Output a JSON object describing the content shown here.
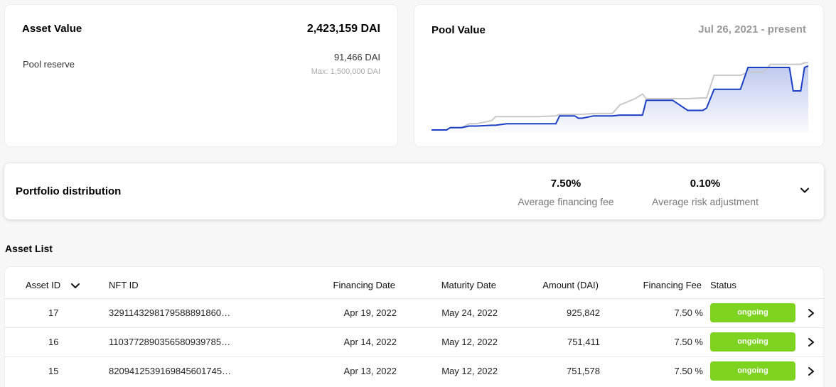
{
  "asset_value": {
    "title": "Asset Value",
    "total": "2,423,159 DAI",
    "reserve_label": "Pool reserve",
    "reserve_value": "91,466 DAI",
    "reserve_max": "Max: 1,500,000 DAI"
  },
  "pool_value": {
    "title": "Pool Value",
    "date_range": "Jul 26, 2021 - present"
  },
  "chart_data": {
    "type": "line",
    "title": "Pool Value",
    "xlabel": "",
    "ylabel": "",
    "grid": false,
    "legend": "none",
    "ylim": [
      0,
      100
    ],
    "x": [
      0,
      4,
      5,
      8,
      10,
      12,
      16,
      17,
      20,
      24,
      28,
      33,
      34,
      38,
      39,
      40,
      43,
      48,
      50,
      54,
      56,
      57,
      60,
      61,
      64,
      68,
      72,
      73,
      75,
      78,
      79,
      82,
      84,
      85,
      88,
      90,
      92,
      95,
      96,
      98,
      99,
      100
    ],
    "series": [
      {
        "color": "#1a3ec4",
        "values": [
          0,
          0,
          3,
          3,
          5,
          5,
          6,
          6,
          8,
          8,
          8,
          8,
          18,
          18,
          15,
          15,
          18,
          18,
          19,
          19,
          19,
          38,
          38,
          38,
          38,
          25,
          25,
          28,
          52,
          52,
          52,
          52,
          80,
          80,
          80,
          80,
          80,
          80,
          50,
          50,
          80,
          82
        ]
      },
      {
        "color": "#c8c8c8",
        "values": [
          0,
          0,
          3,
          3,
          8,
          8,
          12,
          17,
          17,
          17,
          17,
          18,
          20,
          20,
          20,
          20,
          21,
          21,
          32,
          40,
          46,
          40,
          40,
          40,
          40,
          40,
          41,
          41,
          70,
          70,
          70,
          70,
          74,
          74,
          74,
          84,
          84,
          84,
          84,
          84,
          86,
          86
        ]
      }
    ]
  },
  "portfolio": {
    "title": "Portfolio distribution",
    "fee_value": "7.50%",
    "fee_label": "Average financing fee",
    "risk_value": "0.10%",
    "risk_label": "Average risk adjustment"
  },
  "asset_list": {
    "title": "Asset List",
    "columns": {
      "asset_id": "Asset ID",
      "nft_id": "NFT ID",
      "financing_date": "Financing Date",
      "maturity_date": "Maturity Date",
      "amount": "Amount (DAI)",
      "financing_fee": "Financing Fee",
      "status": "Status"
    },
    "rows": [
      {
        "asset_id": "17",
        "nft_id": "3291143298179588891860…",
        "financing_date": "Apr 19, 2022",
        "maturity_date": "May 24, 2022",
        "amount": "925,842",
        "financing_fee": "7.50 %",
        "status": "ongoing"
      },
      {
        "asset_id": "16",
        "nft_id": "1103772890356580939785…",
        "financing_date": "Apr 14, 2022",
        "maturity_date": "May 12, 2022",
        "amount": "751,411",
        "financing_fee": "7.50 %",
        "status": "ongoing"
      },
      {
        "asset_id": "15",
        "nft_id": "8209412539169845601745…",
        "financing_date": "Apr 13, 2022",
        "maturity_date": "May 12, 2022",
        "amount": "751,578",
        "financing_fee": "7.50 %",
        "status": "ongoing"
      }
    ]
  },
  "colors": {
    "accent_line": "#1a3ec4",
    "secondary_line": "#c8c8c8",
    "status_ongoing": "#7ed321"
  }
}
